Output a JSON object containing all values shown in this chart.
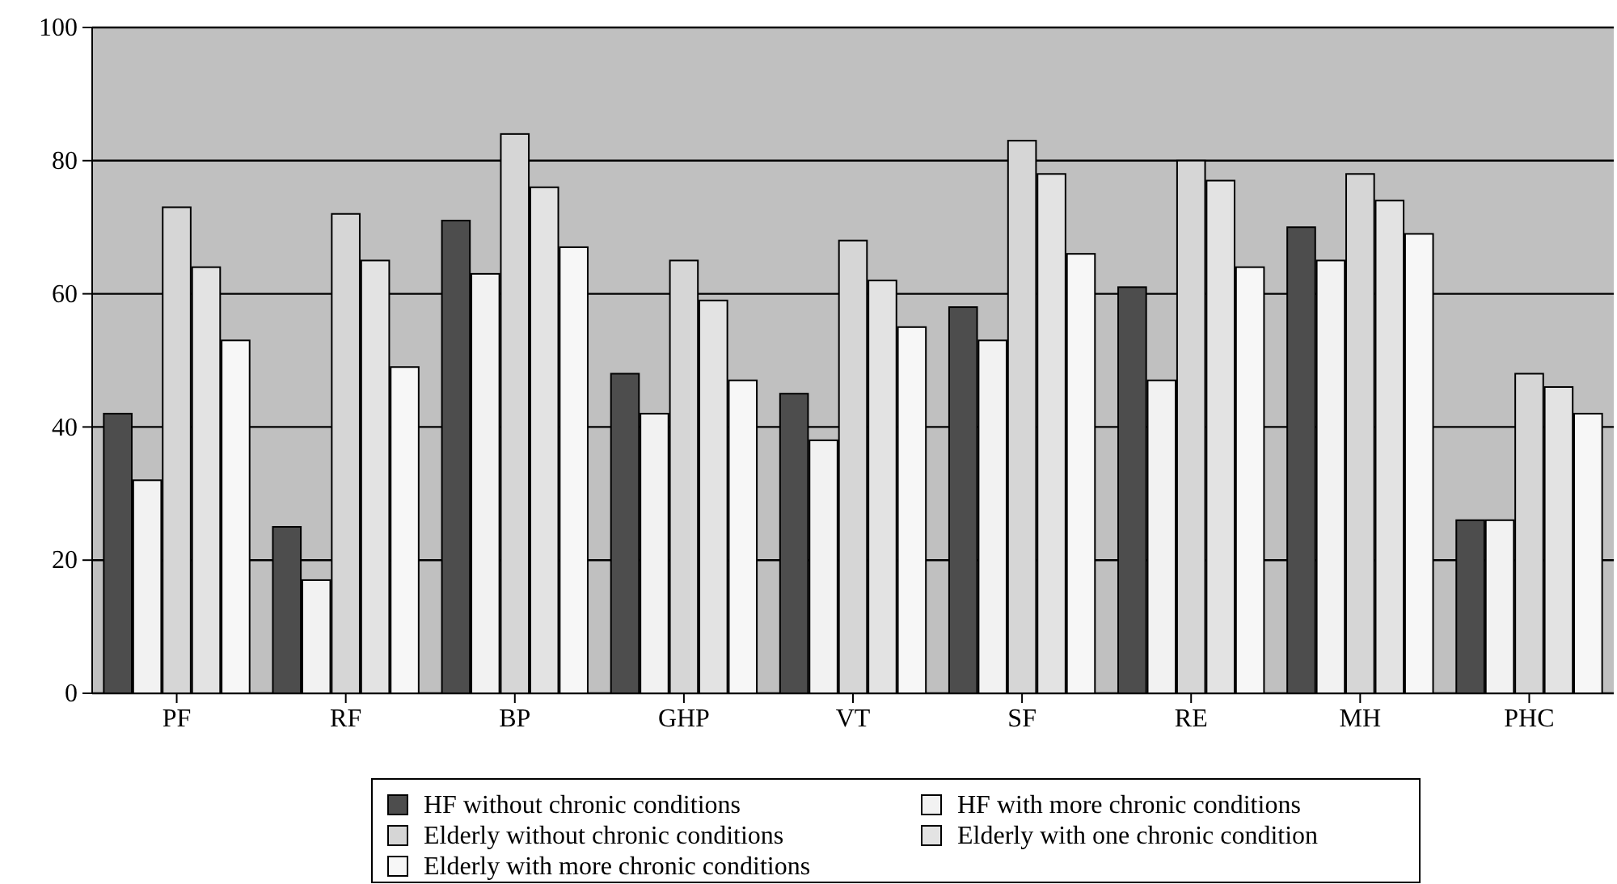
{
  "chart_data": {
    "type": "bar",
    "categories": [
      "PF",
      "RF",
      "BP",
      "GHP",
      "VT",
      "SF",
      "RE",
      "MH",
      "PHC"
    ],
    "series": [
      {
        "name": "HF without chronic conditions",
        "color": "#4d4d4d",
        "values": [
          42,
          25,
          71,
          48,
          45,
          58,
          61,
          70,
          26
        ]
      },
      {
        "name": "HF with more chronic conditions",
        "color": "#f2f2f2",
        "values": [
          32,
          17,
          63,
          42,
          38,
          53,
          47,
          65,
          26
        ]
      },
      {
        "name": "Elderly without chronic conditions",
        "color": "#d6d6d6",
        "values": [
          73,
          72,
          84,
          65,
          68,
          83,
          80,
          78,
          48
        ]
      },
      {
        "name": "Elderly with one chronic condition",
        "color": "#e3e3e3",
        "values": [
          64,
          65,
          76,
          59,
          62,
          78,
          77,
          74,
          46
        ]
      },
      {
        "name": "Elderly with more chronic conditions",
        "color": "#f7f7f7",
        "values": [
          53,
          49,
          67,
          47,
          55,
          66,
          64,
          69,
          42
        ]
      }
    ],
    "ylim": [
      0,
      100
    ],
    "yticks": [
      0,
      20,
      40,
      60,
      80,
      100
    ],
    "grid": "y",
    "legend": "bottom"
  }
}
